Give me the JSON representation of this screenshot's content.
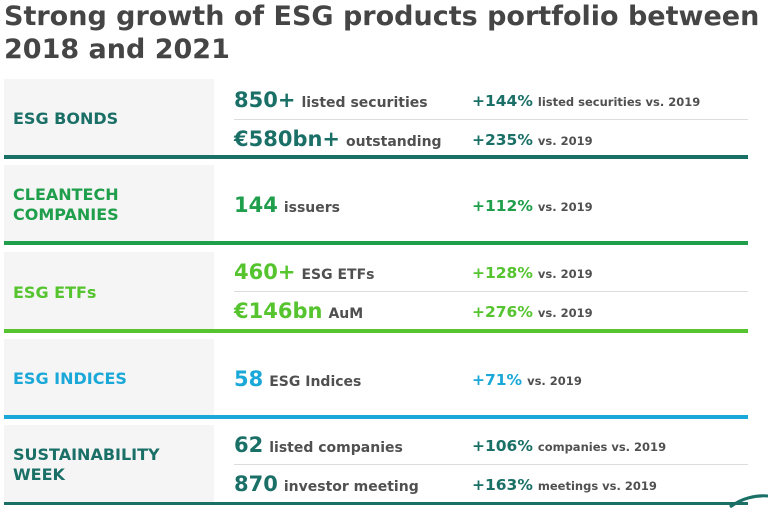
{
  "title": {
    "line1": "Strong growth of ESG products portfolio between",
    "line2": "2018 and 2021"
  },
  "sections": [
    {
      "label_line1": "ESG BONDS",
      "label_line2": "",
      "color": "#1a6f67",
      "rows": [
        {
          "value": "850+",
          "unit": "listed securities",
          "pct": "+144%",
          "note": "listed securities vs. 2019"
        },
        {
          "value": "€580bn+",
          "unit": "outstanding",
          "pct": "+235%",
          "note": "vs. 2019"
        }
      ]
    },
    {
      "label_line1": "CLEANTECH",
      "label_line2": "COMPANIES",
      "color": "#1f9e4b",
      "rows": [
        {
          "value": "144",
          "unit": "issuers",
          "pct": "+112%",
          "note": "vs. 2019"
        }
      ]
    },
    {
      "label_line1": "ESG ETFs",
      "label_line2": "",
      "color": "#55c42e",
      "rows": [
        {
          "value": "460+",
          "unit": "ESG ETFs",
          "pct": "+128%",
          "note": "vs. 2019"
        },
        {
          "value": "€146bn",
          "unit": "AuM",
          "pct": "+276%",
          "note": "vs. 2019"
        }
      ]
    },
    {
      "label_line1": "ESG INDICES",
      "label_line2": "",
      "color": "#1aa8d8",
      "rows": [
        {
          "value": "58",
          "unit": "ESG Indices",
          "pct": "+71%",
          "note": "vs. 2019"
        }
      ]
    },
    {
      "label_line1": "SUSTAINABILITY",
      "label_line2": "WEEK",
      "color": "#1a6f67",
      "rows": [
        {
          "value": "62",
          "unit": "listed companies",
          "pct": "+106%",
          "note": "companies vs. 2019"
        },
        {
          "value": "870",
          "unit": "investor meeting",
          "pct": "+163%",
          "note": "meetings vs. 2019"
        }
      ]
    }
  ]
}
